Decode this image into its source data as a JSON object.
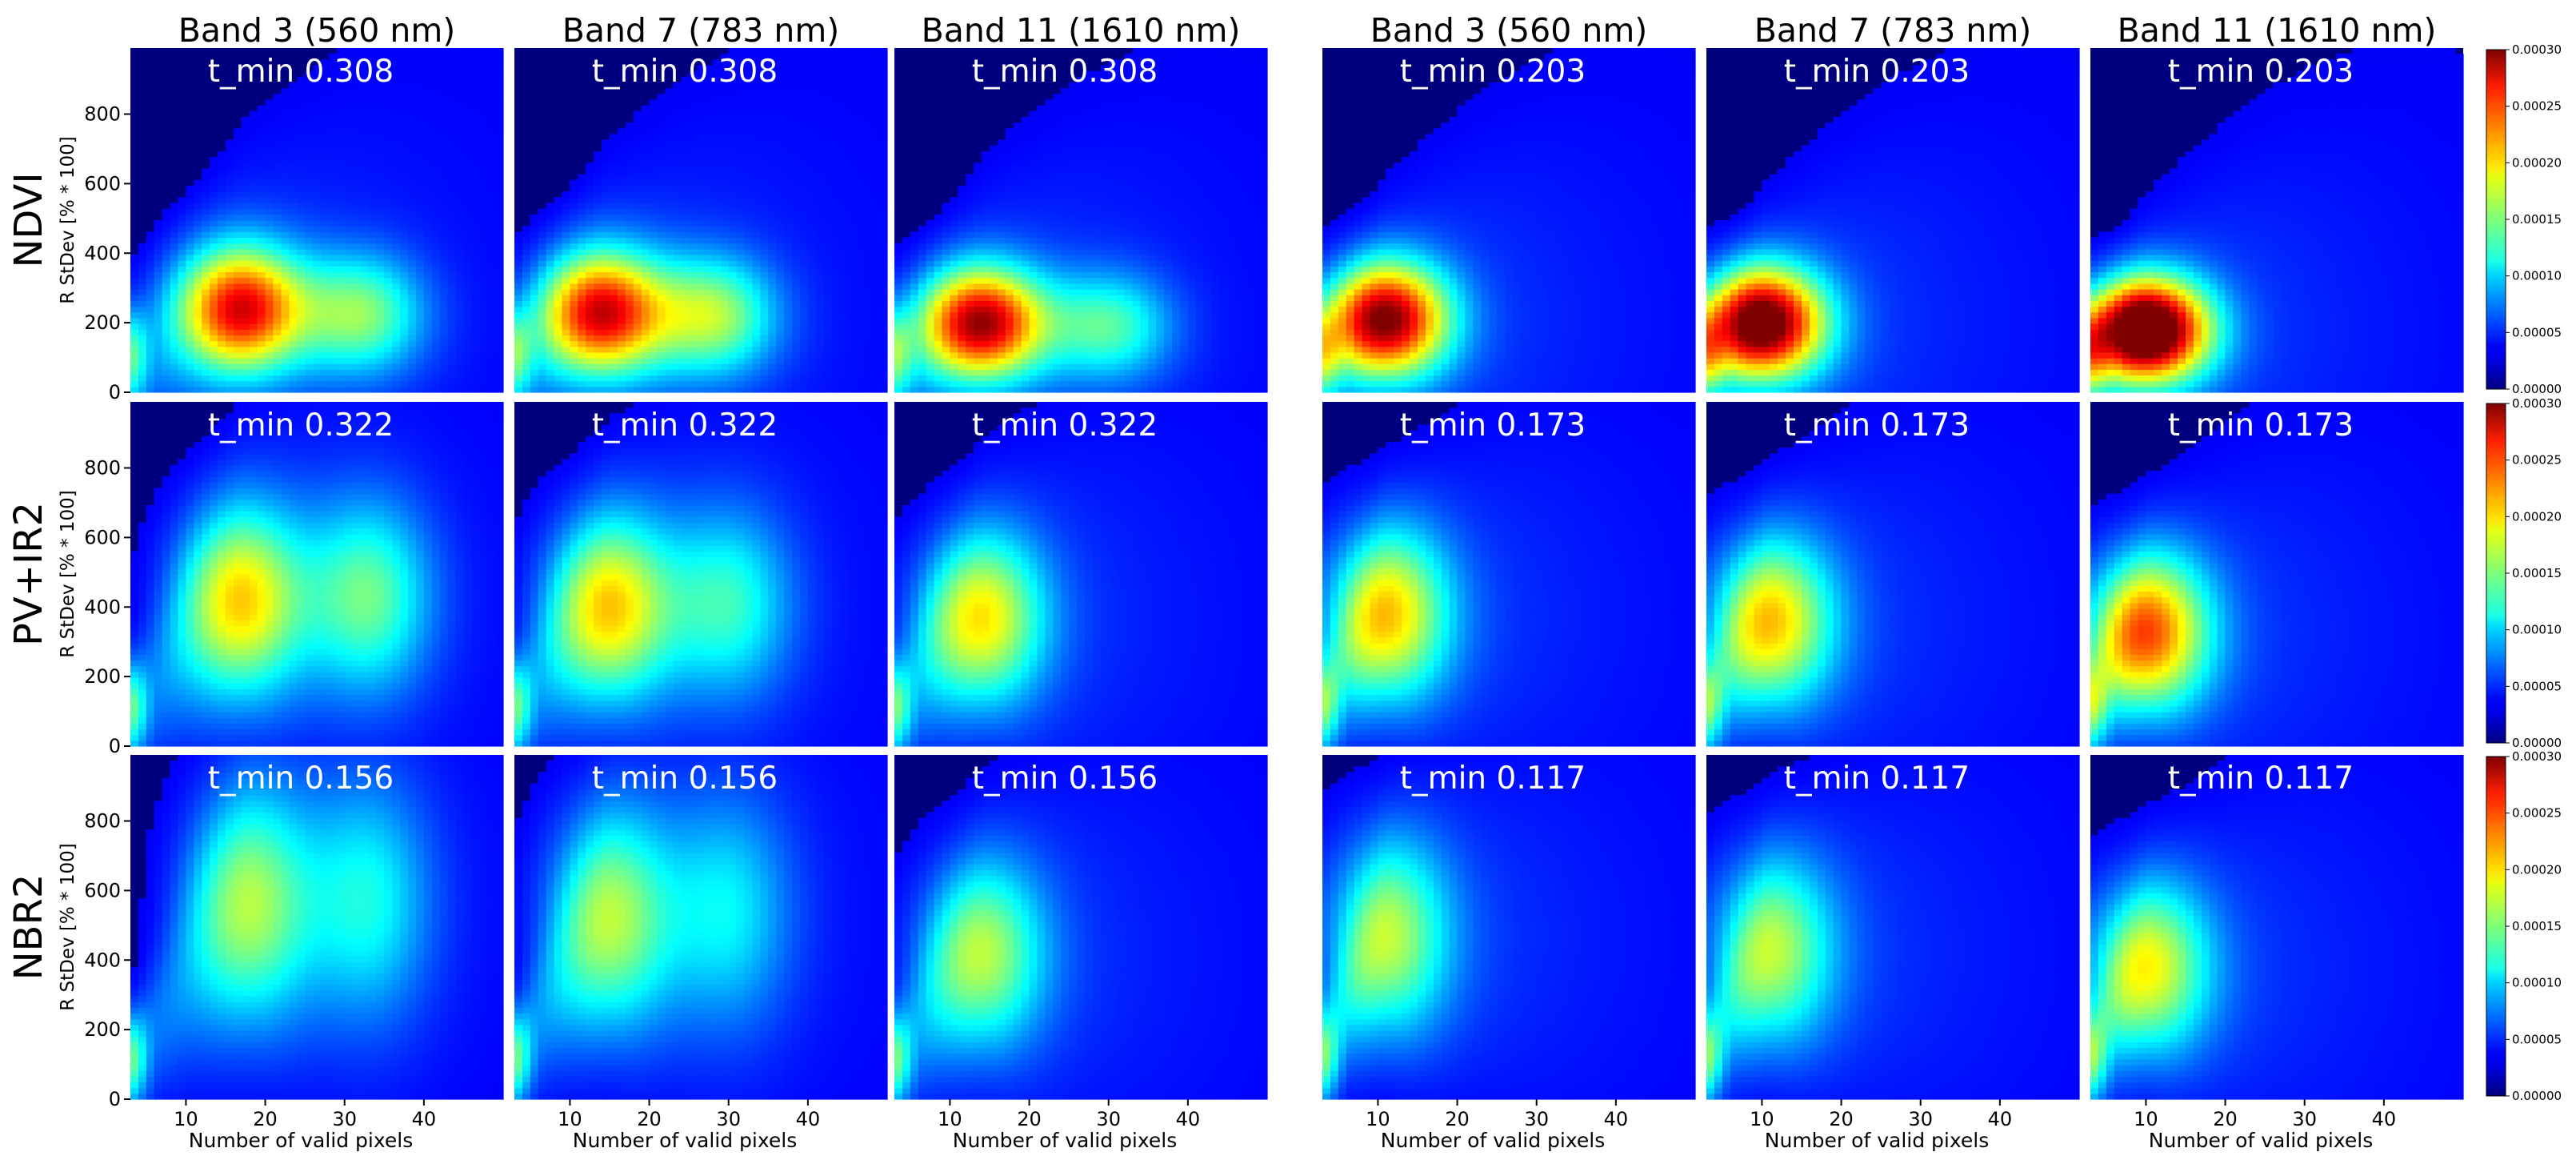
{
  "chart_data": {
    "type": "heatmap",
    "description_rows": [
      "NDVI",
      "PV+IR2",
      "NBR2"
    ],
    "column_headers": [
      "Band 3 (560 nm)",
      "Band 7 (783 nm)",
      "Band 11 (1610 nm)",
      "Band 3 (560 nm)",
      "Band 7 (783 nm)",
      "Band 11 (1610 nm)"
    ],
    "row_labels": [
      "NDVI",
      "PV+IR2",
      "NBR2"
    ],
    "xlabel": "Number of valid pixels",
    "ylabel": "R StDev [% * 100]",
    "xlim": [
      3,
      50
    ],
    "ylim": [
      0,
      990
    ],
    "xticks": [
      10,
      20,
      30,
      40
    ],
    "yticks": [
      0,
      200,
      400,
      600,
      800
    ],
    "colormap": "jet",
    "colorbar_range": [
      0,
      0.0003
    ],
    "colorbar_ticks": [
      "0.00000",
      "0.00005",
      "0.00010",
      "0.00015",
      "0.00020",
      "0.00025",
      "0.00030"
    ],
    "t_min": [
      [
        "t_min 0.308",
        "t_min 0.308",
        "t_min 0.308",
        "t_min 0.203",
        "t_min 0.203",
        "t_min 0.203"
      ],
      [
        "t_min 0.322",
        "t_min 0.322",
        "t_min 0.322",
        "t_min 0.173",
        "t_min 0.173",
        "t_min 0.173"
      ],
      [
        "t_min 0.156",
        "t_min 0.156",
        "t_min 0.156",
        "t_min 0.117",
        "t_min 0.117",
        "t_min 0.117"
      ]
    ],
    "density_peaks": [
      [
        [
          {
            "x": 17,
            "y": 240,
            "d": 0.00024
          },
          {
            "x": 32,
            "y": 225,
            "d": 0.00012
          }
        ],
        [
          {
            "x": 17,
            "y": 420,
            "d": 0.00016
          },
          {
            "x": 33,
            "y": 430,
            "d": 0.00011
          }
        ],
        [
          {
            "x": 18,
            "y": 560,
            "d": 0.00012
          },
          {
            "x": 33,
            "y": 570,
            "d": 8e-05
          }
        ]
      ],
      [
        [
          {
            "x": 14,
            "y": 230,
            "d": 0.00024
          },
          {
            "x": 28,
            "y": 220,
            "d": 0.00013
          }
        ],
        [
          {
            "x": 15,
            "y": 400,
            "d": 0.00016
          },
          {
            "x": 30,
            "y": 410,
            "d": 9e-05
          }
        ],
        [
          {
            "x": 15,
            "y": 520,
            "d": 0.00012
          },
          {
            "x": 30,
            "y": 540,
            "d": 7e-05
          }
        ]
      ],
      [
        [
          {
            "x": 14,
            "y": 200,
            "d": 0.00026
          },
          {
            "x": 30,
            "y": 190,
            "d": 0.0001
          }
        ],
        [
          {
            "x": 14,
            "y": 370,
            "d": 0.00015
          }
        ],
        [
          {
            "x": 14,
            "y": 420,
            "d": 0.00012
          }
        ]
      ],
      [
        [
          {
            "x": 11,
            "y": 210,
            "d": 0.00027
          }
        ],
        [
          {
            "x": 11,
            "y": 380,
            "d": 0.00016
          }
        ],
        [
          {
            "x": 11,
            "y": 470,
            "d": 0.00012
          }
        ]
      ],
      [
        [
          {
            "x": 10,
            "y": 200,
            "d": 0.0003
          }
        ],
        [
          {
            "x": 11,
            "y": 360,
            "d": 0.00016
          }
        ],
        [
          {
            "x": 11,
            "y": 430,
            "d": 0.00012
          }
        ]
      ],
      [
        [
          {
            "x": 10,
            "y": 180,
            "d": 0.00034
          }
        ],
        [
          {
            "x": 10,
            "y": 330,
            "d": 0.0002
          }
        ],
        [
          {
            "x": 10,
            "y": 380,
            "d": 0.00014
          }
        ]
      ]
    ]
  }
}
